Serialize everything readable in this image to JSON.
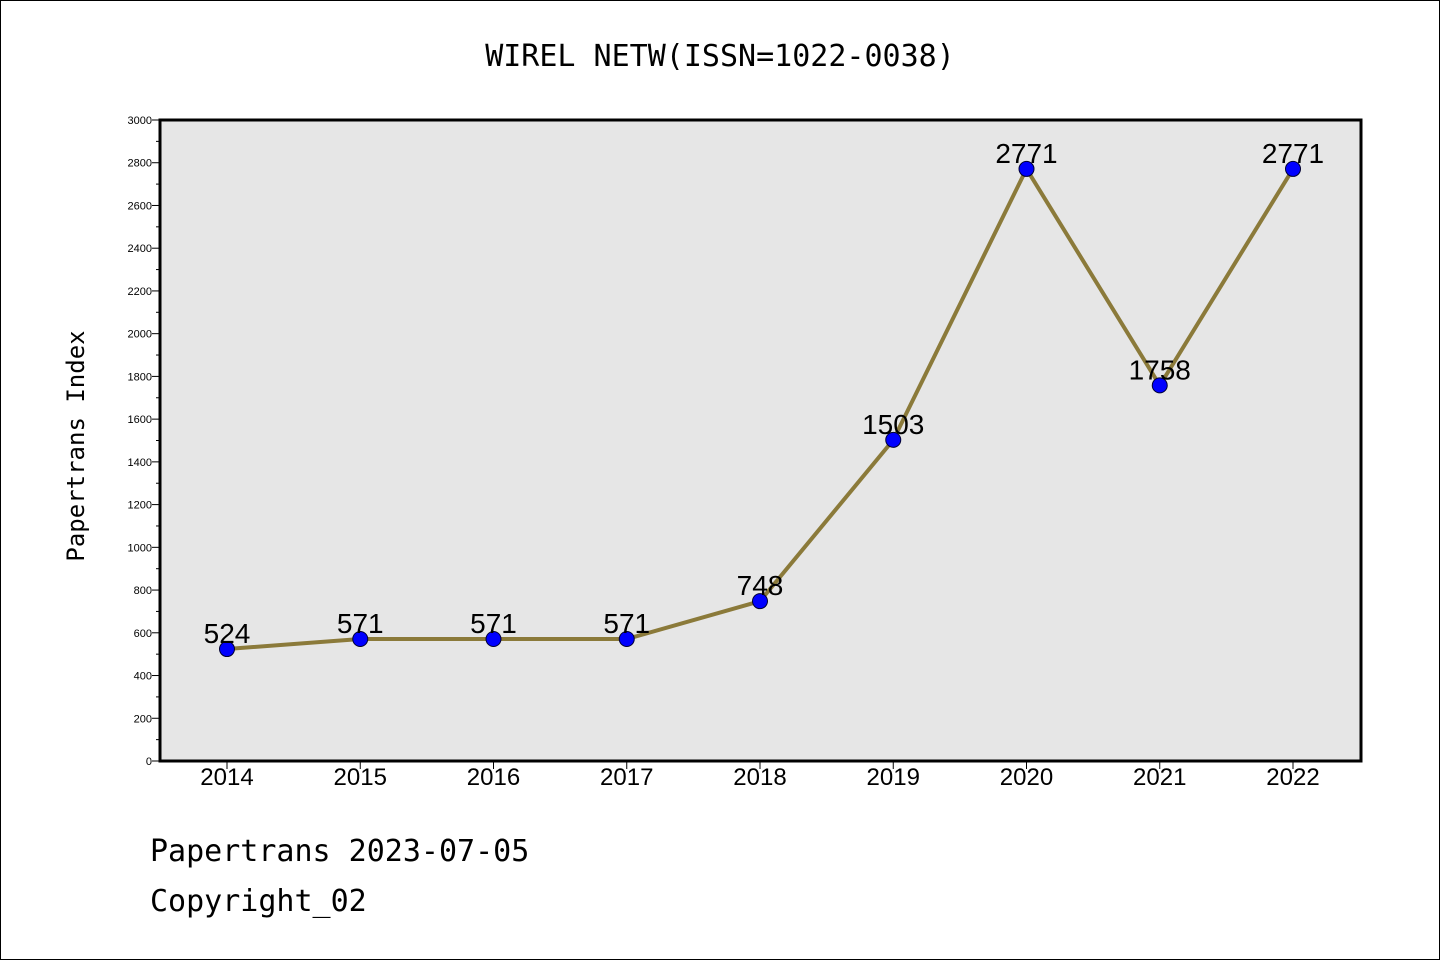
{
  "chart_data": {
    "type": "line",
    "title": "WIREL NETW(ISSN=1022-0038)",
    "xlabel": "",
    "ylabel": "Papertrans Index",
    "categories": [
      "2014",
      "2015",
      "2016",
      "2017",
      "2018",
      "2019",
      "2020",
      "2021",
      "2022"
    ],
    "series": [
      {
        "values": [
          524,
          571,
          571,
          571,
          748,
          1503,
          2771,
          1758,
          2771
        ],
        "data_labels": [
          "524",
          "571",
          "571",
          "571",
          "748",
          "1503",
          "2771",
          "1758",
          "2771"
        ]
      }
    ],
    "ylim": [
      0,
      3000
    ],
    "yticks": [
      "0",
      "200",
      "400",
      "600",
      "800",
      "1000",
      "1200",
      "1400",
      "1600",
      "1800",
      "2000",
      "2200",
      "2400",
      "2600",
      "2800",
      "3000"
    ],
    "grid": false,
    "legend": "none",
    "colors": {
      "line": "#8b7a3a",
      "marker": "#0000ff",
      "plot_background": "#e6e6e6"
    }
  },
  "footer": {
    "date_line": "Papertrans 2023-07-05",
    "copyright": "Copyright_02"
  }
}
